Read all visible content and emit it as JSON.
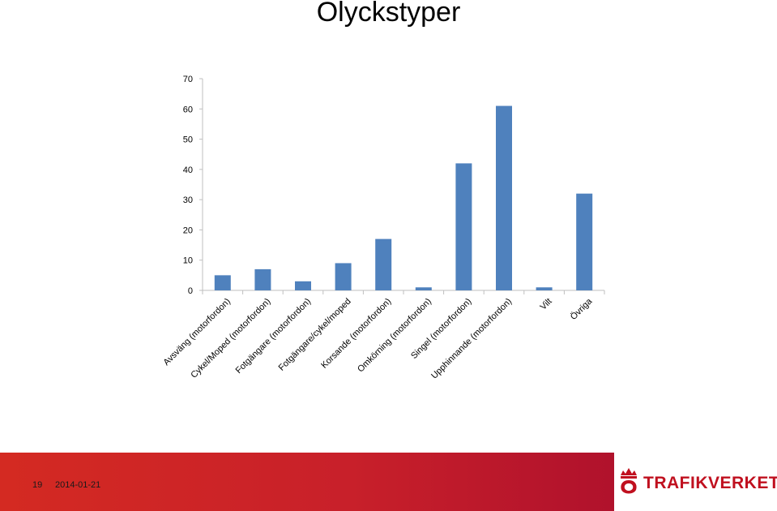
{
  "chart_data": {
    "type": "bar",
    "title": "Olyckstyper",
    "categories": [
      "Avsväng (motorfordon)",
      "Cykel/Moped (motorfordon)",
      "Fotgängare (motorfordon)",
      "Fotgängare/cykel/moped",
      "Korsande (motorfordon)",
      "Omkörning (motorfordon)",
      "Singel (motorfordon)",
      "Upphinnande (motorfordon)",
      "Vilt",
      "Övriga"
    ],
    "values": [
      5,
      7,
      3,
      9,
      17,
      1,
      42,
      61,
      1,
      32
    ],
    "ylim": [
      0,
      70
    ],
    "yticks": [
      0,
      10,
      20,
      30,
      40,
      50,
      60,
      70
    ],
    "grid": false,
    "bar_color": "#4f81bd"
  },
  "footer": {
    "slide_number": "19",
    "date": "2014-01-21",
    "brand": "TRAFIKVERKET",
    "brand_color": "#c0101f"
  }
}
